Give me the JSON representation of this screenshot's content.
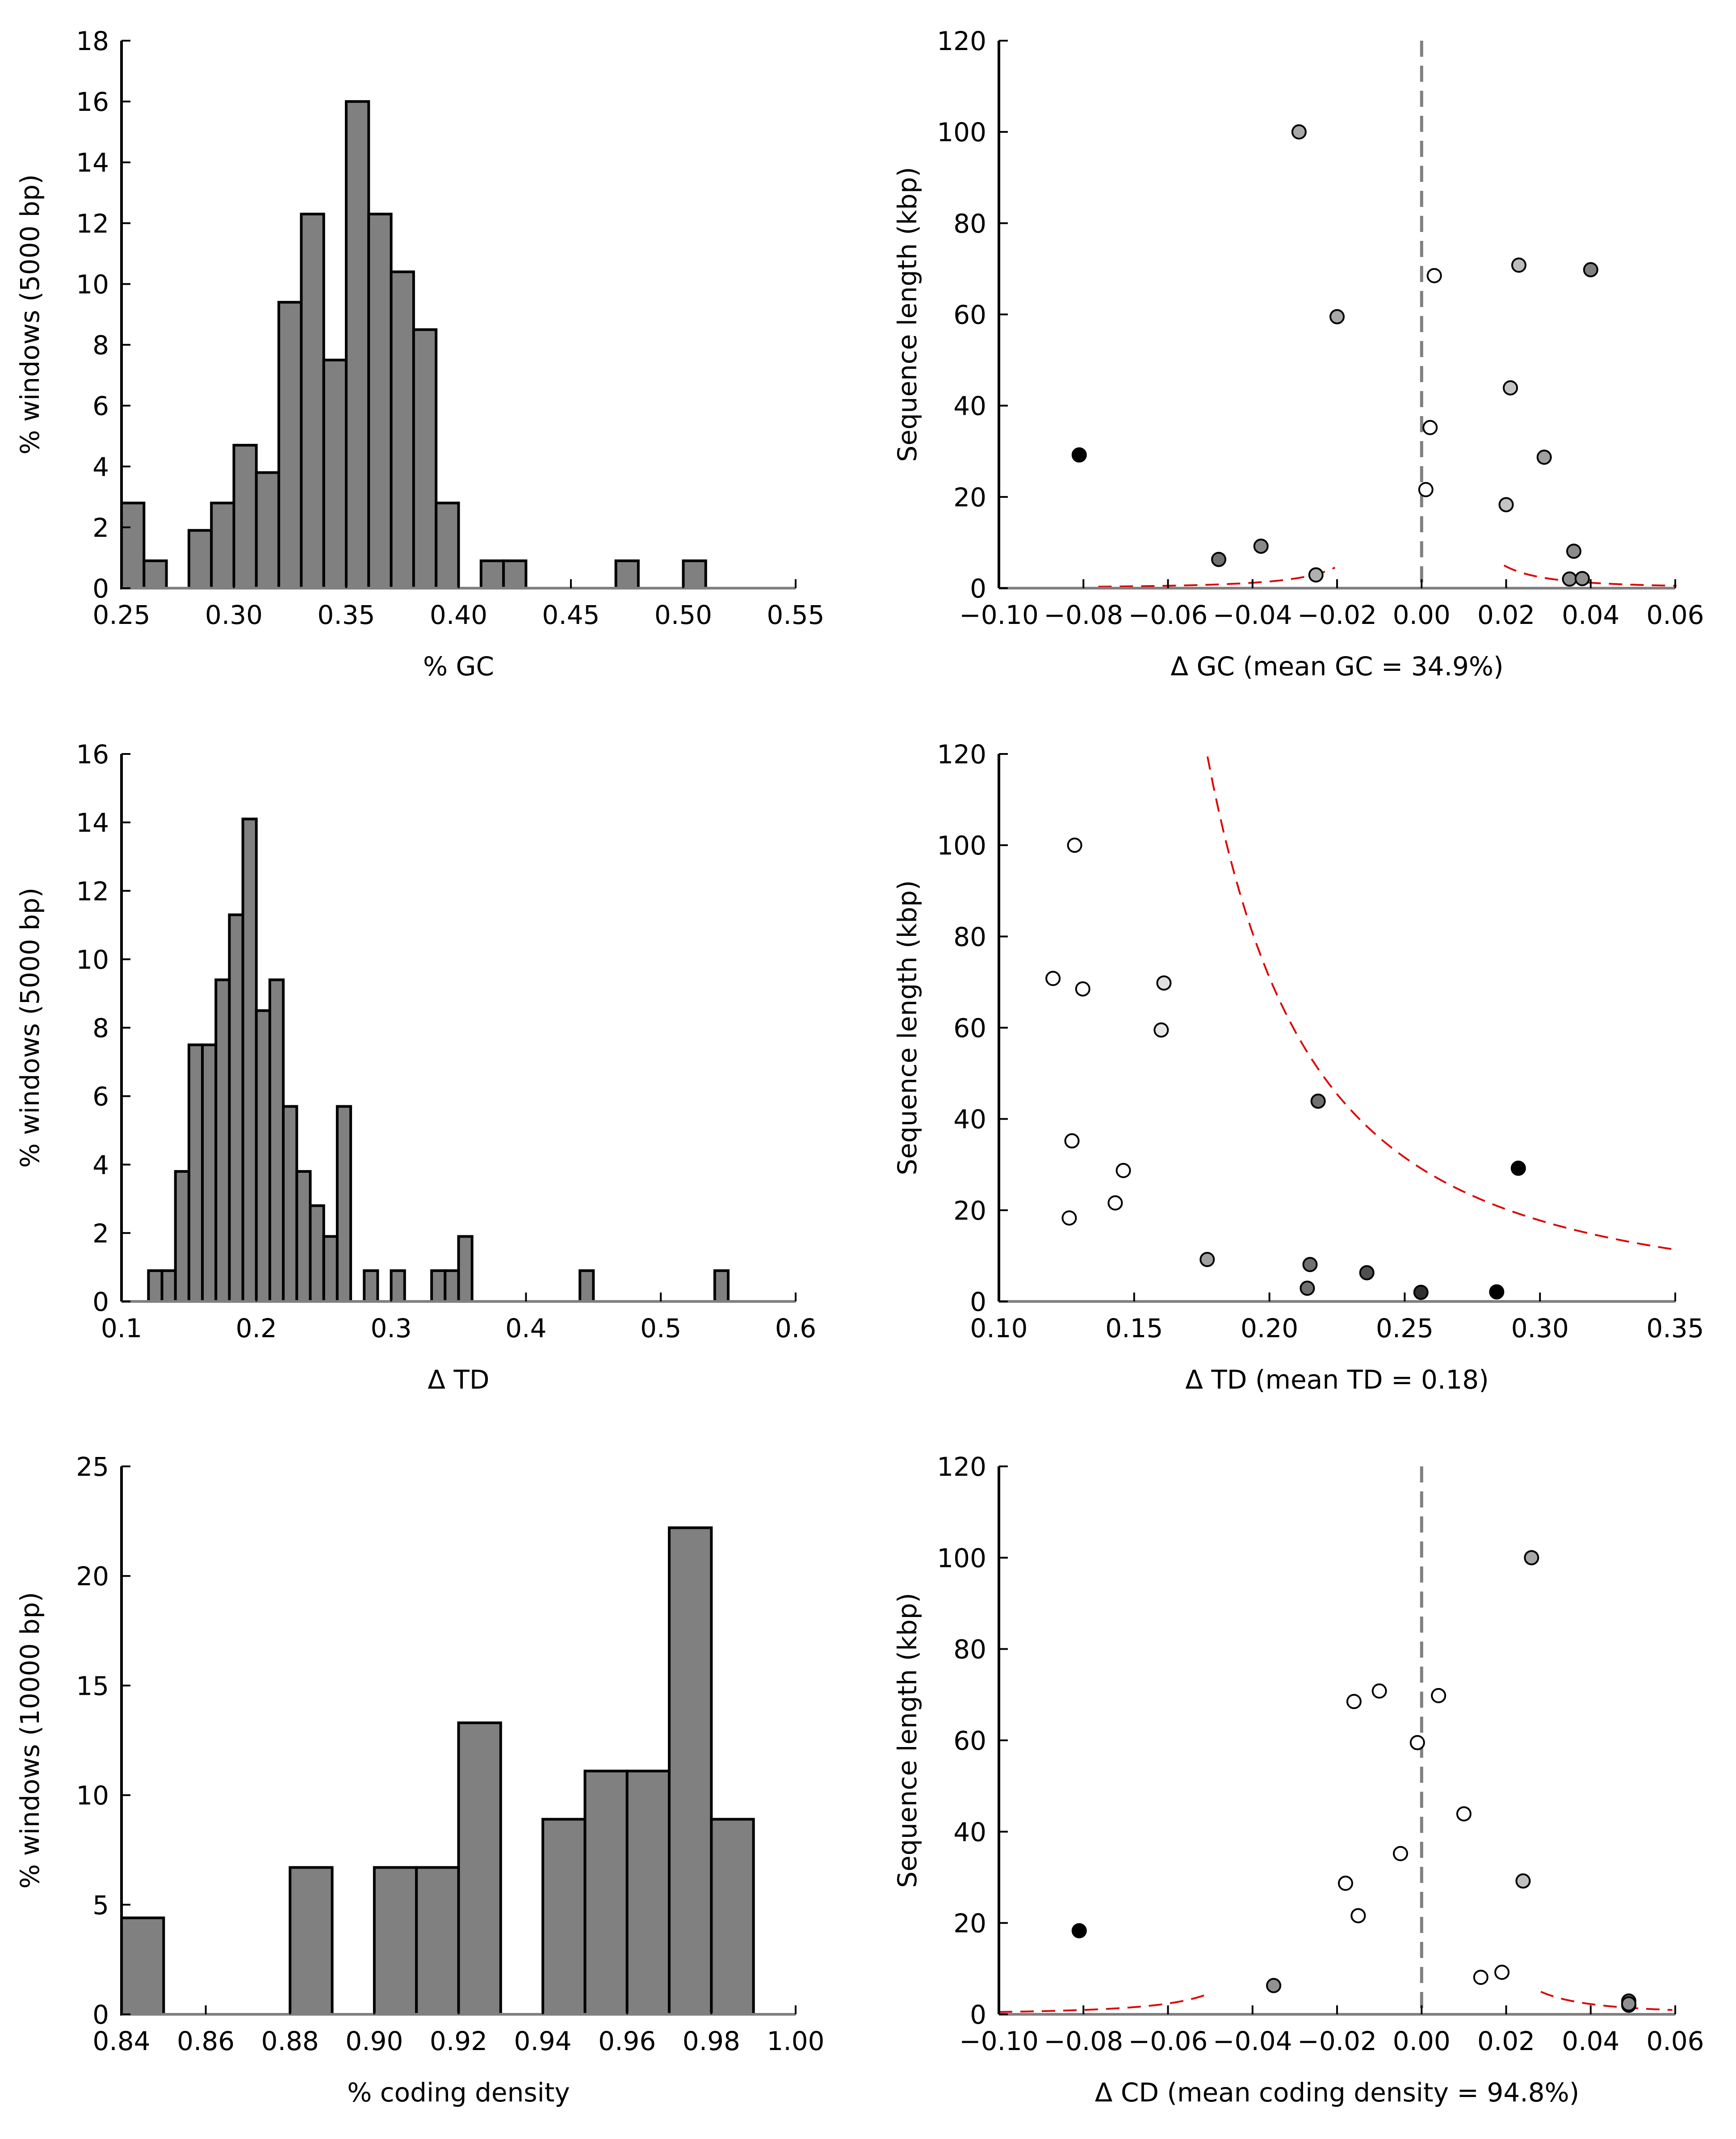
{
  "chart_data": [
    {
      "id": "gc_hist",
      "type": "bar",
      "xlabel": "% GC",
      "ylabel": "% windows (5000 bp)",
      "xlim": [
        0.25,
        0.55
      ],
      "ylim": [
        0,
        18
      ],
      "xticks": [
        "0.25",
        "0.30",
        "0.35",
        "0.40",
        "0.45",
        "0.50",
        "0.55"
      ],
      "yticks": [
        "0",
        "2",
        "4",
        "6",
        "8",
        "10",
        "12",
        "14",
        "16",
        "18"
      ],
      "bin_width": 0.01,
      "bins": [
        {
          "x": 0.25,
          "y": 2.8
        },
        {
          "x": 0.26,
          "y": 0.9
        },
        {
          "x": 0.28,
          "y": 1.9
        },
        {
          "x": 0.29,
          "y": 2.8
        },
        {
          "x": 0.3,
          "y": 4.7
        },
        {
          "x": 0.31,
          "y": 3.8
        },
        {
          "x": 0.32,
          "y": 9.4
        },
        {
          "x": 0.33,
          "y": 12.3
        },
        {
          "x": 0.34,
          "y": 7.5
        },
        {
          "x": 0.35,
          "y": 16.0
        },
        {
          "x": 0.36,
          "y": 12.3
        },
        {
          "x": 0.37,
          "y": 10.4
        },
        {
          "x": 0.38,
          "y": 8.5
        },
        {
          "x": 0.39,
          "y": 2.8
        },
        {
          "x": 0.41,
          "y": 0.9
        },
        {
          "x": 0.42,
          "y": 0.9
        },
        {
          "x": 0.47,
          "y": 0.9
        },
        {
          "x": 0.5,
          "y": 0.9
        }
      ],
      "fill": "#808080"
    },
    {
      "id": "gc_scatter",
      "type": "scatter",
      "xlabel": "Δ GC (mean GC = 34.9%)",
      "ylabel": "Sequence length (kbp)",
      "xlim": [
        -0.1,
        0.06
      ],
      "ylim": [
        0,
        120
      ],
      "xticks": [
        "−0.10",
        "−0.08",
        "−0.06",
        "−0.04",
        "−0.02",
        "0.00",
        "0.02",
        "0.04",
        "0.06"
      ],
      "yticks": [
        "0",
        "20",
        "40",
        "60",
        "80",
        "100",
        "120"
      ],
      "zero_line": true,
      "points": [
        {
          "x": -0.029,
          "y": 100,
          "c": "#a8a8a8"
        },
        {
          "x": -0.02,
          "y": 59.5,
          "c": "#a8a8a8"
        },
        {
          "x": -0.081,
          "y": 29.2,
          "c": "#000000"
        },
        {
          "x": -0.048,
          "y": 6.3,
          "c": "#707070"
        },
        {
          "x": -0.038,
          "y": 9.2,
          "c": "#8a8a8a"
        },
        {
          "x": -0.025,
          "y": 2.9,
          "c": "#b0b0b0"
        },
        {
          "x": 0.003,
          "y": 68.5,
          "c": "#ffffff"
        },
        {
          "x": 0.002,
          "y": 35.2,
          "c": "#ffffff"
        },
        {
          "x": 0.001,
          "y": 21.6,
          "c": "#ffffff"
        },
        {
          "x": 0.023,
          "y": 70.8,
          "c": "#bcbcbc"
        },
        {
          "x": 0.04,
          "y": 69.8,
          "c": "#808080"
        },
        {
          "x": 0.021,
          "y": 43.9,
          "c": "#c4c4c4"
        },
        {
          "x": 0.029,
          "y": 28.7,
          "c": "#a0a0a0"
        },
        {
          "x": 0.02,
          "y": 18.3,
          "c": "#c4c4c4"
        },
        {
          "x": 0.036,
          "y": 8.1,
          "c": "#8c8c8c"
        },
        {
          "x": 0.035,
          "y": 2.0,
          "c": "#909090"
        },
        {
          "x": 0.038,
          "y": 2.1,
          "c": "#909090"
        }
      ],
      "curve_color": "#dd0000",
      "curves": [
        {
          "k": 0.0019,
          "center": 0,
          "side": -1,
          "xfrom": -0.0765,
          "xto": -0.0205
        },
        {
          "k": 0.0019,
          "center": 0,
          "side": 1,
          "xfrom": 0.0195,
          "xto": 0.0603
        }
      ]
    },
    {
      "id": "td_hist",
      "type": "bar",
      "xlabel": "Δ TD",
      "ylabel": "% windows (5000 bp)",
      "xlim": [
        0.1,
        0.6
      ],
      "ylim": [
        0,
        16
      ],
      "xticks": [
        "0.1",
        "0.2",
        "0.3",
        "0.4",
        "0.5",
        "0.6"
      ],
      "yticks": [
        "0",
        "2",
        "4",
        "6",
        "8",
        "10",
        "12",
        "14",
        "16"
      ],
      "bin_width": 0.01,
      "bins": [
        {
          "x": 0.12,
          "y": 0.9
        },
        {
          "x": 0.13,
          "y": 0.9
        },
        {
          "x": 0.14,
          "y": 3.8
        },
        {
          "x": 0.15,
          "y": 7.5
        },
        {
          "x": 0.16,
          "y": 7.5
        },
        {
          "x": 0.17,
          "y": 9.4
        },
        {
          "x": 0.18,
          "y": 11.3
        },
        {
          "x": 0.19,
          "y": 14.1
        },
        {
          "x": 0.2,
          "y": 8.5
        },
        {
          "x": 0.21,
          "y": 9.4
        },
        {
          "x": 0.22,
          "y": 5.7
        },
        {
          "x": 0.23,
          "y": 3.8
        },
        {
          "x": 0.24,
          "y": 2.8
        },
        {
          "x": 0.25,
          "y": 1.9
        },
        {
          "x": 0.26,
          "y": 5.7
        },
        {
          "x": 0.28,
          "y": 0.9
        },
        {
          "x": 0.3,
          "y": 0.9
        },
        {
          "x": 0.33,
          "y": 0.9
        },
        {
          "x": 0.34,
          "y": 0.9
        },
        {
          "x": 0.35,
          "y": 1.9
        },
        {
          "x": 0.44,
          "y": 0.9
        },
        {
          "x": 0.54,
          "y": 0.9
        }
      ],
      "fill": "#808080"
    },
    {
      "id": "td_scatter",
      "type": "scatter",
      "xlabel": "Δ TD (mean TD = 0.18)",
      "ylabel": "Sequence length (kbp)",
      "xlim": [
        0.1,
        0.35
      ],
      "ylim": [
        0,
        120
      ],
      "xticks": [
        "0.10",
        "0.15",
        "0.20",
        "0.25",
        "0.30",
        "0.35"
      ],
      "yticks": [
        "0",
        "20",
        "40",
        "60",
        "80",
        "100",
        "120"
      ],
      "zero_line": false,
      "points": [
        {
          "x": 0.128,
          "y": 100,
          "c": "#ffffff"
        },
        {
          "x": 0.12,
          "y": 70.8,
          "c": "#ffffff"
        },
        {
          "x": 0.131,
          "y": 68.5,
          "c": "#ffffff"
        },
        {
          "x": 0.161,
          "y": 69.8,
          "c": "#e0e0e0"
        },
        {
          "x": 0.16,
          "y": 59.5,
          "c": "#e8e8e8"
        },
        {
          "x": 0.218,
          "y": 43.9,
          "c": "#707070"
        },
        {
          "x": 0.127,
          "y": 35.2,
          "c": "#ffffff"
        },
        {
          "x": 0.146,
          "y": 28.7,
          "c": "#ffffff"
        },
        {
          "x": 0.292,
          "y": 29.2,
          "c": "#000000"
        },
        {
          "x": 0.143,
          "y": 21.6,
          "c": "#ffffff"
        },
        {
          "x": 0.126,
          "y": 18.3,
          "c": "#ffffff"
        },
        {
          "x": 0.177,
          "y": 9.2,
          "c": "#a0a0a0"
        },
        {
          "x": 0.215,
          "y": 8.1,
          "c": "#707070"
        },
        {
          "x": 0.214,
          "y": 2.9,
          "c": "#707070"
        },
        {
          "x": 0.236,
          "y": 6.3,
          "c": "#505050"
        },
        {
          "x": 0.256,
          "y": 2.0,
          "c": "#303030"
        },
        {
          "x": 0.284,
          "y": 2.1,
          "c": "#000000"
        }
      ],
      "curve_color": "#dd0000",
      "curves": [
        {
          "k": 0.71,
          "center": 0.1,
          "side": 1,
          "xfrom": 0.1059,
          "xto": 0.35
        }
      ]
    },
    {
      "id": "cd_hist",
      "type": "bar",
      "xlabel": "% coding density",
      "ylabel": "% windows (10000 bp)",
      "xlim": [
        0.84,
        1.0
      ],
      "ylim": [
        0,
        25
      ],
      "xticks": [
        "0.84",
        "0.86",
        "0.88",
        "0.90",
        "0.92",
        "0.94",
        "0.96",
        "0.98",
        "1.00"
      ],
      "yticks": [
        "0",
        "5",
        "10",
        "15",
        "20",
        "25"
      ],
      "bin_width": 0.01,
      "bins": [
        {
          "x": 0.84,
          "y": 4.4
        },
        {
          "x": 0.88,
          "y": 6.7
        },
        {
          "x": 0.9,
          "y": 6.7
        },
        {
          "x": 0.91,
          "y": 6.7
        },
        {
          "x": 0.92,
          "y": 13.3
        },
        {
          "x": 0.94,
          "y": 8.9
        },
        {
          "x": 0.95,
          "y": 11.1
        },
        {
          "x": 0.96,
          "y": 11.1
        },
        {
          "x": 0.97,
          "y": 22.2
        },
        {
          "x": 0.98,
          "y": 8.9
        }
      ],
      "fill": "#808080"
    },
    {
      "id": "cd_scatter",
      "type": "scatter",
      "xlabel": "Δ CD (mean coding density = 94.8%)",
      "ylabel": "Sequence length (kbp)",
      "xlim": [
        -0.1,
        0.06
      ],
      "ylim": [
        0,
        120
      ],
      "xticks": [
        "−0.10",
        "−0.08",
        "−0.06",
        "−0.04",
        "−0.02",
        "0.00",
        "0.02",
        "0.04",
        "0.06"
      ],
      "yticks": [
        "0",
        "20",
        "40",
        "60",
        "80",
        "100",
        "120"
      ],
      "zero_line": true,
      "points": [
        {
          "x": 0.026,
          "y": 100,
          "c": "#a8a8a8"
        },
        {
          "x": -0.01,
          "y": 70.8,
          "c": "#ffffff"
        },
        {
          "x": 0.004,
          "y": 69.8,
          "c": "#ffffff"
        },
        {
          "x": -0.016,
          "y": 68.5,
          "c": "#ffffff"
        },
        {
          "x": -0.001,
          "y": 59.5,
          "c": "#ffffff"
        },
        {
          "x": 0.01,
          "y": 43.9,
          "c": "#ffffff"
        },
        {
          "x": -0.005,
          "y": 35.2,
          "c": "#ffffff"
        },
        {
          "x": -0.018,
          "y": 28.7,
          "c": "#ffffff"
        },
        {
          "x": 0.024,
          "y": 29.2,
          "c": "#c0c0c0"
        },
        {
          "x": -0.015,
          "y": 21.6,
          "c": "#ffffff"
        },
        {
          "x": -0.081,
          "y": 18.3,
          "c": "#000000"
        },
        {
          "x": 0.019,
          "y": 9.2,
          "c": "#ffffff"
        },
        {
          "x": 0.014,
          "y": 8.1,
          "c": "#ffffff"
        },
        {
          "x": -0.035,
          "y": 6.3,
          "c": "#909090"
        },
        {
          "x": 0.049,
          "y": 2.9,
          "c": "#707070"
        },
        {
          "x": 0.049,
          "y": 2.0,
          "c": "#707070"
        },
        {
          "x": 0.049,
          "y": 2.3,
          "c": "#909090"
        }
      ],
      "curve_color": "#dd0000",
      "curves": [
        {
          "k": 0.0029,
          "center": -0.025,
          "side": -1,
          "xfrom": -0.1,
          "xto": -0.0498
        },
        {
          "k": 0.0029,
          "center": 0.004,
          "side": 1,
          "xfrom": 0.0282,
          "xto": 0.0593
        }
      ]
    }
  ]
}
